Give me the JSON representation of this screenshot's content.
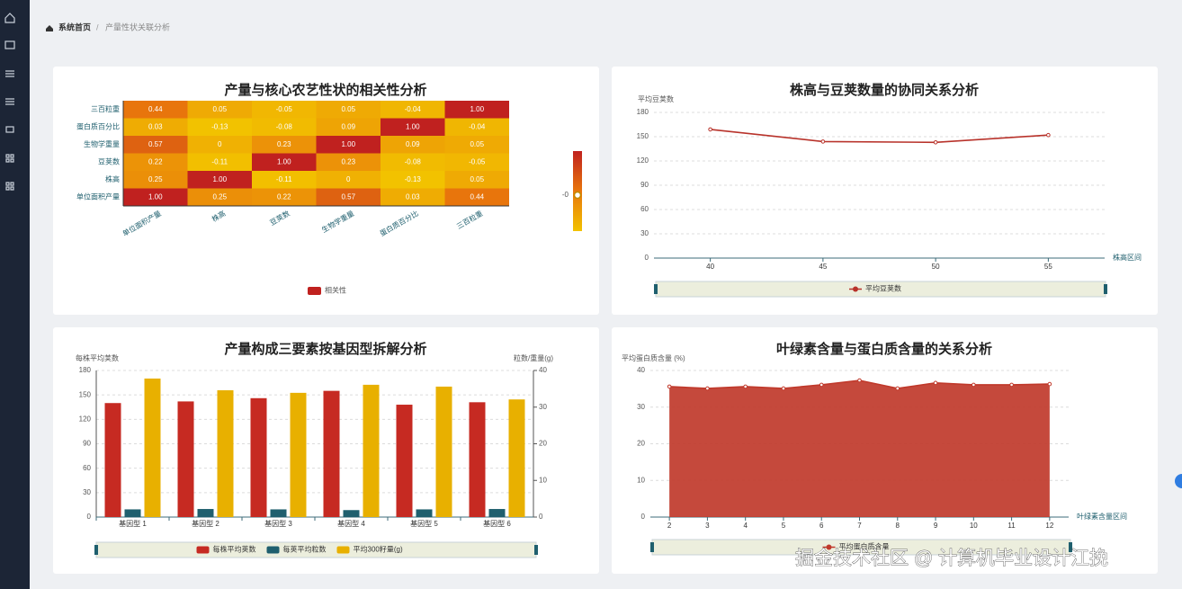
{
  "breadcrumb": {
    "home": "系统首页",
    "separator": "/",
    "current": "产量性状关联分析"
  },
  "watermark": "掘金技术社区 @ 计算机毕业设计江挽",
  "chart_data": [
    {
      "type": "heatmap",
      "title": "产量与核心农艺性状的相关性分析",
      "x": [
        "单位面积产量",
        "株高",
        "豆荚数",
        "生物学重量",
        "蛋白质百分比",
        "三百粒重"
      ],
      "y": [
        "三百粒重",
        "蛋白质百分比",
        "生物学重量",
        "豆荚数",
        "株高",
        "单位面积产量"
      ],
      "values": [
        [
          0.44,
          0.05,
          -0.05,
          0.05,
          -0.04,
          1
        ],
        [
          0.03,
          -0.13,
          -0.08,
          0.09,
          1,
          -0.04
        ],
        [
          0.57,
          0,
          0.23,
          1,
          0.09,
          0.05
        ],
        [
          0.22,
          -0.11,
          1,
          0.23,
          -0.08,
          -0.05
        ],
        [
          0.25,
          1,
          -0.11,
          0,
          -0.13,
          0.05
        ],
        [
          1,
          0.25,
          0.22,
          0.57,
          0.03,
          0.44
        ]
      ],
      "value_labels": [
        [
          "0.44",
          "0.05",
          "-0.05",
          "0.05",
          "-0.04",
          "1.00"
        ],
        [
          "0.03",
          "-0.13",
          "-0.08",
          "0.09",
          "1.00",
          "-0.04"
        ],
        [
          "0.57",
          "0",
          "0.23",
          "1.00",
          "0.09",
          "0.05"
        ],
        [
          "0.22",
          "-0.11",
          "1.00",
          "0.23",
          "-0.08",
          "-0.05"
        ],
        [
          "0.25",
          "1.00",
          "-0.11",
          "0",
          "-0.13",
          "0.05"
        ],
        [
          "1.00",
          "0.25",
          "0.22",
          "0.57",
          "0.03",
          "0.44"
        ]
      ],
      "series_name": "相关性",
      "visual_map_label": "-0",
      "colors": [
        "#f2c200",
        "#e8760c",
        "#c0211f"
      ]
    },
    {
      "type": "line",
      "title": "株高与豆荚数量的协同关系分析",
      "y_label": "平均豆荚数",
      "x_label": "株高区间",
      "x": [
        40,
        45,
        50,
        55
      ],
      "series": [
        {
          "name": "平均豆荚数",
          "color": "#b8322a",
          "values": [
            159,
            144,
            143,
            152
          ]
        }
      ],
      "xlim": [
        37.5,
        57.5
      ],
      "xticks": [
        40,
        45,
        50,
        55
      ],
      "ylim": [
        0,
        180
      ],
      "yticks": [
        0,
        30,
        60,
        90,
        120,
        150,
        180
      ],
      "grid": true
    },
    {
      "type": "bar",
      "title": "产量构成三要素按基因型拆解分析",
      "y_label": "每株平均荚数",
      "y2_label": "粒数/重量(g)",
      "categories": [
        "基因型 1",
        "基因型 2",
        "基因型 3",
        "基因型 4",
        "基因型 5",
        "基因型 6"
      ],
      "series": [
        {
          "name": "每株平均荚数",
          "color": "#c62a22",
          "values": [
            140,
            142,
            146,
            155,
            138,
            141
          ]
        },
        {
          "name": "每荚平均粒数",
          "color": "#1f5f6e",
          "values": [
            2.1,
            2.2,
            2.1,
            1.9,
            2.1,
            2.2
          ],
          "axis": "y2"
        },
        {
          "name": "平均300籽量(g)",
          "color": "#e8b000",
          "values": [
            37.8,
            34.6,
            33.9,
            36.1,
            35.6,
            32.1
          ],
          "axis": "y2"
        }
      ],
      "ylim": [
        0,
        180
      ],
      "yticks": [
        0,
        30,
        60,
        90,
        120,
        150,
        180
      ],
      "y2lim": [
        0,
        40
      ],
      "y2ticks": [
        0,
        10,
        20,
        30,
        40
      ],
      "grid": true
    },
    {
      "type": "area",
      "title": "叶绿素含量与蛋白质含量的关系分析",
      "y_label": "平均蛋白质含量 (%)",
      "x_label": "叶绿素含量区间",
      "x": [
        2,
        3,
        4,
        5,
        6,
        7,
        8,
        9,
        10,
        11,
        12
      ],
      "series": [
        {
          "name": "平均蛋白质含量",
          "color": "#c0392b",
          "values": [
            35.6,
            35.1,
            35.6,
            35.1,
            36.1,
            37.3,
            35.1,
            36.6,
            36.1,
            36.1,
            36.3
          ]
        }
      ],
      "xlim": [
        1.5,
        12.5
      ],
      "xticks": [
        2,
        3,
        4,
        5,
        6,
        7,
        8,
        9,
        10,
        11,
        12
      ],
      "ylim": [
        0,
        40
      ],
      "yticks": [
        0,
        10,
        20,
        30,
        40
      ],
      "grid": true
    }
  ]
}
